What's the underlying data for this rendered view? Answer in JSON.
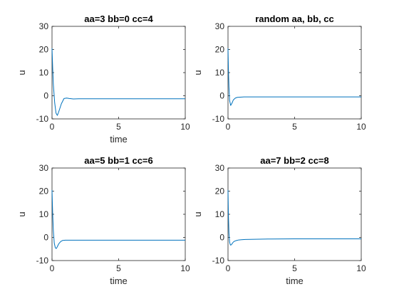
{
  "chart_data": [
    {
      "type": "line",
      "title": "aa=3 bb=0 cc=4",
      "xlabel": "time",
      "ylabel": "u",
      "xlim": [
        0,
        10
      ],
      "ylim": [
        -10,
        30
      ],
      "xticks": [
        "0",
        "5",
        "10"
      ],
      "yticks": [
        "-10",
        "0",
        "10",
        "20",
        "30"
      ],
      "grid": false,
      "series": [
        {
          "x": [
            0,
            0.05,
            0.1,
            0.2,
            0.3,
            0.4,
            0.5,
            0.7,
            0.9,
            1.1,
            1.3,
            1.6,
            2,
            3,
            5,
            8,
            10
          ],
          "y": [
            20.5,
            12,
            5,
            -3,
            -7.5,
            -8.5,
            -7,
            -3.5,
            -1.2,
            -1,
            -1.2,
            -1.4,
            -1.3,
            -1.3,
            -1.3,
            -1.3,
            -1.3
          ]
        }
      ]
    },
    {
      "type": "line",
      "title": "random aa, bb, cc",
      "xlabel": "",
      "ylabel": "u",
      "xlim": [
        0,
        10
      ],
      "ylim": [
        -10,
        30
      ],
      "xticks": [
        "0",
        "5",
        "10"
      ],
      "yticks": [
        "-10",
        "0",
        "10",
        "20",
        "30"
      ],
      "grid": false,
      "series": [
        {
          "x": [
            0,
            0.03,
            0.07,
            0.12,
            0.2,
            0.3,
            0.4,
            0.55,
            0.7,
            0.9,
            1.2,
            1.6,
            2.5,
            4,
            7,
            10
          ],
          "y": [
            20.5,
            12,
            4,
            -2,
            -4.2,
            -3.2,
            -1.8,
            -1,
            -0.7,
            -0.6,
            -0.5,
            -0.5,
            -0.5,
            -0.5,
            -0.5,
            -0.5
          ]
        }
      ]
    },
    {
      "type": "line",
      "title": "aa=5 bb=1 cc=6",
      "xlabel": "time",
      "ylabel": "u",
      "xlim": [
        0,
        10
      ],
      "ylim": [
        -10,
        30
      ],
      "xticks": [
        "0",
        "5",
        "10"
      ],
      "yticks": [
        "-10",
        "0",
        "10",
        "20",
        "30"
      ],
      "grid": false,
      "series": [
        {
          "x": [
            0,
            0.05,
            0.1,
            0.17,
            0.25,
            0.32,
            0.4,
            0.5,
            0.65,
            0.8,
            1,
            1.3,
            1.8,
            3,
            5,
            8,
            10
          ],
          "y": [
            20.5,
            10,
            3,
            -2.5,
            -4.5,
            -4.8,
            -4,
            -2.8,
            -1.8,
            -1.3,
            -1.2,
            -1.2,
            -1.2,
            -1.2,
            -1.2,
            -1.2,
            -1.2
          ]
        }
      ]
    },
    {
      "type": "line",
      "title": "aa=7 bb=2 cc=8",
      "xlabel": "time",
      "ylabel": "u",
      "xlim": [
        0,
        10
      ],
      "ylim": [
        -10,
        30
      ],
      "xticks": [
        "0",
        "5",
        "10"
      ],
      "yticks": [
        "-10",
        "0",
        "10",
        "20",
        "30"
      ],
      "grid": false,
      "series": [
        {
          "x": [
            0,
            0.03,
            0.07,
            0.12,
            0.18,
            0.25,
            0.32,
            0.4,
            0.5,
            0.65,
            0.8,
            1,
            1.3,
            2,
            3,
            5,
            8,
            10
          ],
          "y": [
            20.5,
            10,
            2,
            -2,
            -3.3,
            -3.2,
            -2.6,
            -2,
            -1.6,
            -1.3,
            -1.1,
            -1,
            -0.9,
            -0.8,
            -0.7,
            -0.6,
            -0.6,
            -0.6
          ]
        }
      ]
    }
  ]
}
